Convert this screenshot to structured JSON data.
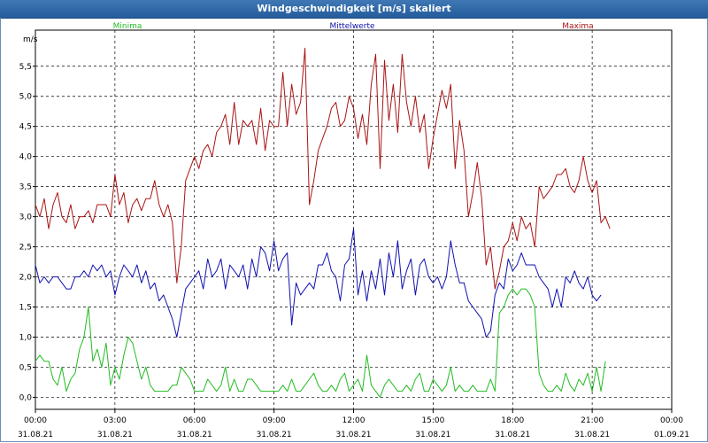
{
  "window": {
    "title": "Windgeschwindigkeit [m/s] skaliert"
  },
  "legend": {
    "min_label": "Minima",
    "mean_label": "Mittelwerte",
    "max_label": "Maxima"
  },
  "colors": {
    "min": "#22bb22",
    "mean": "#1010b0",
    "max": "#aa1414",
    "grid": "#000000",
    "titlebar": "#2f67a6"
  },
  "chart_data": {
    "type": "line",
    "ylabel": "m/s",
    "ylim": [
      -0.2,
      6.1
    ],
    "yticks": [
      "0,0",
      "0,5",
      "1,0",
      "1,5",
      "2,0",
      "2,5",
      "3,0",
      "3,5",
      "4,0",
      "4,5",
      "5,0",
      "5,5"
    ],
    "ytick_values": [
      0,
      0.5,
      1,
      1.5,
      2,
      2.5,
      3,
      3.5,
      4,
      4.5,
      5,
      5.5
    ],
    "x_hours_range": [
      0,
      24
    ],
    "xticks": [
      {
        "time": "00:00",
        "date": "31.08.21"
      },
      {
        "time": "03:00",
        "date": "31.08.21"
      },
      {
        "time": "06:00",
        "date": "31.08.21"
      },
      {
        "time": "09:00",
        "date": "31.08.21"
      },
      {
        "time": "12:00",
        "date": "31.08.21"
      },
      {
        "time": "15:00",
        "date": "31.08.21"
      },
      {
        "time": "18:00",
        "date": "31.08.21"
      },
      {
        "time": "21:00",
        "date": "31.08.21"
      },
      {
        "time": "00:00",
        "date": "01.09.21"
      }
    ],
    "grid": true,
    "sample_interval_minutes": 10,
    "series": [
      {
        "name": "Maxima",
        "values": [
          3.2,
          3.0,
          3.3,
          2.8,
          3.2,
          3.4,
          3.0,
          2.9,
          3.2,
          2.8,
          3.0,
          3.0,
          3.1,
          2.9,
          3.2,
          3.2,
          3.2,
          3.0,
          3.7,
          3.2,
          3.4,
          2.9,
          3.2,
          3.3,
          3.1,
          3.3,
          3.3,
          3.6,
          3.2,
          3.0,
          3.2,
          2.9,
          1.9,
          2.5,
          3.6,
          3.8,
          4.0,
          3.8,
          4.1,
          4.2,
          4.0,
          4.4,
          4.5,
          4.7,
          4.2,
          4.9,
          4.2,
          4.6,
          4.5,
          4.6,
          4.2,
          4.8,
          4.1,
          4.6,
          4.5,
          4.5,
          5.4,
          4.5,
          5.2,
          4.7,
          4.9,
          5.8,
          3.2,
          3.6,
          4.1,
          4.3,
          4.5,
          4.8,
          4.9,
          4.5,
          4.6,
          5.0,
          4.8,
          4.3,
          4.7,
          4.2,
          5.2,
          5.7,
          3.8,
          5.6,
          4.6,
          5.2,
          4.4,
          5.7,
          4.9,
          4.5,
          5.0,
          4.4,
          4.7,
          3.8,
          4.3,
          4.7,
          5.1,
          4.8,
          5.2,
          3.8,
          4.6,
          4.1,
          3.0,
          3.4,
          3.9,
          3.3,
          2.2,
          2.5,
          1.8,
          2.1,
          2.5,
          2.6,
          2.9,
          2.6,
          3.0,
          2.8,
          2.9,
          2.5,
          3.5,
          3.3,
          3.4,
          3.5,
          3.7,
          3.7,
          3.8,
          3.5,
          3.4,
          3.6,
          4.0,
          3.6,
          3.4,
          3.6,
          2.9,
          3.0,
          2.8
        ],
        "color": "#aa1414"
      },
      {
        "name": "Mittelwerte",
        "values": [
          2.2,
          1.9,
          2.0,
          1.9,
          2.0,
          2.0,
          1.9,
          1.8,
          1.8,
          2.0,
          2.0,
          2.1,
          2.0,
          2.2,
          2.1,
          2.2,
          2.0,
          2.1,
          1.7,
          2.0,
          2.2,
          2.1,
          2.0,
          2.2,
          1.9,
          2.1,
          1.8,
          1.9,
          1.6,
          1.7,
          1.5,
          1.3,
          1.0,
          1.4,
          1.8,
          1.9,
          2.0,
          2.1,
          1.8,
          2.3,
          2.0,
          2.1,
          2.3,
          1.8,
          2.2,
          2.1,
          2.0,
          2.2,
          1.8,
          2.3,
          2.0,
          2.5,
          2.4,
          2.1,
          2.6,
          2.1,
          2.3,
          2.4,
          1.2,
          1.9,
          1.7,
          1.8,
          1.9,
          1.8,
          2.2,
          2.2,
          2.4,
          2.1,
          2.0,
          1.6,
          2.2,
          2.3,
          2.8,
          1.7,
          2.1,
          1.6,
          2.1,
          1.8,
          2.3,
          1.7,
          2.4,
          2.0,
          2.6,
          1.8,
          2.1,
          2.3,
          1.7,
          2.2,
          2.3,
          2.0,
          1.9,
          2.0,
          1.8,
          2.0,
          2.6,
          2.2,
          1.9,
          1.9,
          1.6,
          1.5,
          1.4,
          1.3,
          1.0,
          1.1,
          1.7,
          1.9,
          1.8,
          2.3,
          2.1,
          2.2,
          2.4,
          2.2,
          2.2,
          2.2,
          2.0,
          1.9,
          1.8,
          1.5,
          1.8,
          1.5,
          2.0,
          1.9,
          2.1,
          1.9,
          1.8,
          2.0,
          1.7,
          1.6,
          1.7
        ],
        "color": "#1010b0"
      },
      {
        "name": "Minima",
        "values": [
          0.6,
          0.7,
          0.6,
          0.6,
          0.3,
          0.2,
          0.5,
          0.1,
          0.3,
          0.4,
          0.8,
          1.0,
          1.5,
          0.6,
          0.8,
          0.5,
          0.9,
          0.2,
          0.5,
          0.3,
          0.7,
          1.0,
          0.9,
          0.6,
          0.3,
          0.5,
          0.2,
          0.1,
          0.1,
          0.1,
          0.1,
          0.2,
          0.2,
          0.5,
          0.4,
          0.3,
          0.1,
          0.1,
          0.1,
          0.3,
          0.2,
          0.1,
          0.2,
          0.5,
          0.1,
          0.3,
          0.1,
          0.1,
          0.3,
          0.3,
          0.2,
          0.1,
          0.1,
          0.1,
          0.1,
          0.1,
          0.2,
          0.1,
          0.3,
          0.1,
          0.1,
          0.2,
          0.3,
          0.4,
          0.2,
          0.1,
          0.1,
          0.2,
          0.1,
          0.3,
          0.4,
          0.1,
          0.2,
          0.3,
          0.1,
          0.7,
          0.2,
          0.1,
          0.0,
          0.2,
          0.3,
          0.2,
          0.1,
          0.1,
          0.2,
          0.1,
          0.3,
          0.4,
          0.1,
          0.1,
          0.3,
          0.2,
          0.1,
          0.2,
          0.5,
          0.1,
          0.2,
          0.1,
          0.1,
          0.2,
          0.1,
          0.1,
          0.1,
          0.3,
          0.1,
          1.4,
          1.5,
          1.7,
          1.8,
          1.7,
          1.8,
          1.8,
          1.7,
          1.5,
          0.4,
          0.2,
          0.1,
          0.1,
          0.2,
          0.1,
          0.4,
          0.2,
          0.1,
          0.3,
          0.2,
          0.4,
          0.1,
          0.5,
          0.1,
          0.6
        ],
        "color": "#22bb22"
      }
    ]
  }
}
